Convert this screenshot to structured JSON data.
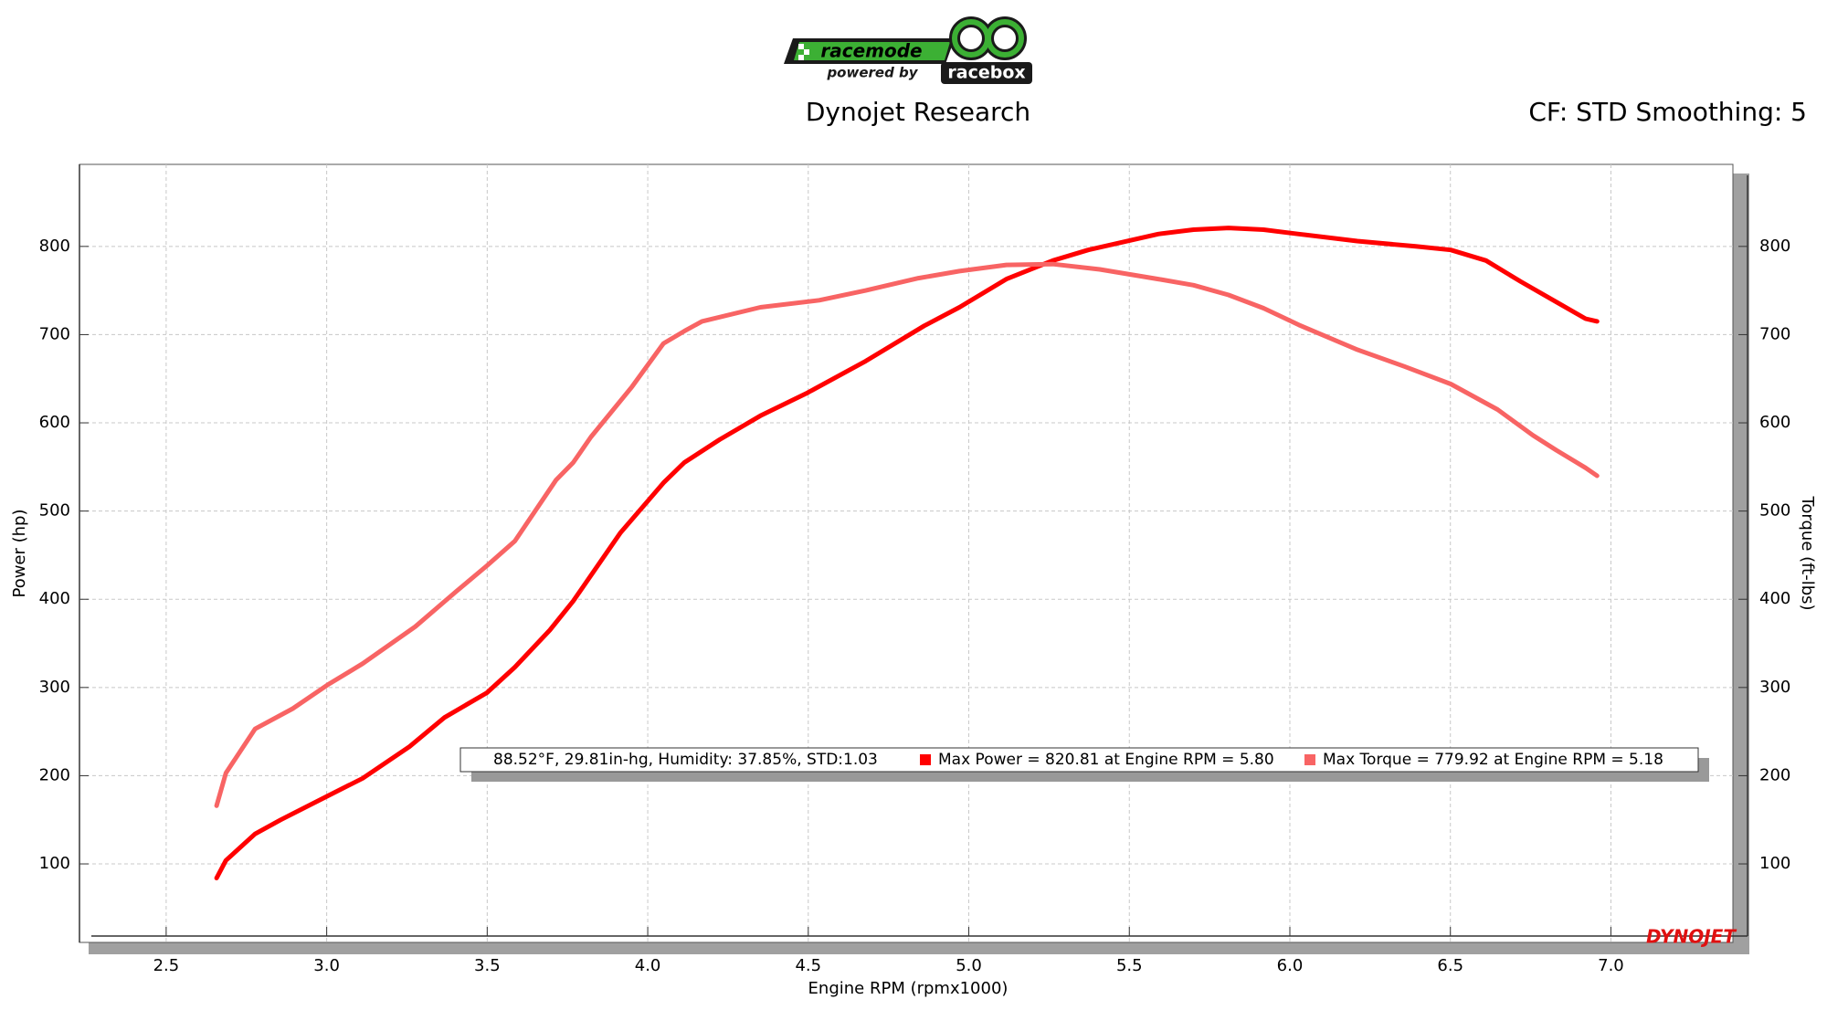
{
  "logo": {
    "brand": "racemode",
    "tagline": "powered by",
    "maker": "racebox"
  },
  "chart_data": {
    "type": "line",
    "title": "Dynojet Research",
    "subtitle": "CF: STD Smoothing: 5",
    "x_label": "Engine RPM (rpmx1000)",
    "y_label": "Power (hp)",
    "y2_label": "Torque (ft-lbs)",
    "annotation": "88.52°F, 29.81in-hg, Humidity: 37.85%, STD:1.03",
    "watermark": "DYNOJET",
    "xlim": [
      2.23,
      7.38
    ],
    "ylim": [
      11,
      893
    ],
    "y2lim": [
      11,
      893
    ],
    "xticks": [
      2.5,
      {
        "value": 3,
        "label": "3.0"
      },
      3.5,
      {
        "value": 4,
        "label": "4.0"
      },
      4.5,
      {
        "value": 5,
        "label": "5.0"
      },
      5.5,
      {
        "value": 6,
        "label": "6.0"
      },
      6.5,
      {
        "value": 7,
        "label": "7.0"
      }
    ],
    "yticks": [
      100,
      200,
      300,
      400,
      500,
      600,
      700,
      800
    ],
    "y2ticks": [
      100,
      200,
      300,
      400,
      500,
      600,
      700,
      800
    ],
    "grid": true,
    "series": [
      {
        "name": "Max Power = 820.81 at Engine RPM = 5.80",
        "color": "#ff0000",
        "x": [
          2.657,
          2.686,
          2.777,
          2.857,
          3.003,
          3.112,
          3.258,
          3.367,
          3.499,
          3.586,
          3.695,
          3.768,
          3.914,
          4.049,
          4.114,
          4.224,
          4.351,
          4.497,
          4.679,
          4.861,
          4.971,
          5.117,
          5.262,
          5.372,
          5.59,
          5.7,
          5.809,
          5.918,
          6.028,
          6.21,
          6.392,
          6.501,
          6.611,
          6.72,
          6.83,
          6.921,
          6.957
        ],
        "values": [
          84,
          104,
          134,
          150,
          177,
          197,
          233,
          266,
          294,
          323,
          365,
          398,
          475,
          532,
          555,
          581,
          608,
          634,
          670,
          710,
          731,
          763,
          784,
          796,
          814,
          819,
          821,
          819,
          814,
          806,
          800,
          796,
          784,
          760,
          737,
          718,
          715
        ]
      },
      {
        "name": "Max Torque = 779.92 at Engine RPM = 5.18",
        "color": "#f86464",
        "axis": "y2",
        "x": [
          2.657,
          2.686,
          2.777,
          2.894,
          3.003,
          3.112,
          3.276,
          3.404,
          3.499,
          3.586,
          3.714,
          3.768,
          3.823,
          3.951,
          4.049,
          4.114,
          4.169,
          4.351,
          4.534,
          4.679,
          4.843,
          4.971,
          5.117,
          5.262,
          5.408,
          5.59,
          5.7,
          5.809,
          5.918,
          6.028,
          6.21,
          6.356,
          6.501,
          6.647,
          6.757,
          6.83,
          6.921,
          6.957
        ],
        "values": [
          166,
          203,
          253,
          276,
          303,
          327,
          369,
          409,
          438,
          466,
          535,
          555,
          584,
          641,
          690,
          704,
          715,
          731,
          739,
          750,
          764,
          772,
          779,
          780,
          774,
          763,
          756,
          745,
          730,
          711,
          683,
          664,
          644,
          615,
          586,
          569,
          549,
          540
        ]
      }
    ]
  }
}
